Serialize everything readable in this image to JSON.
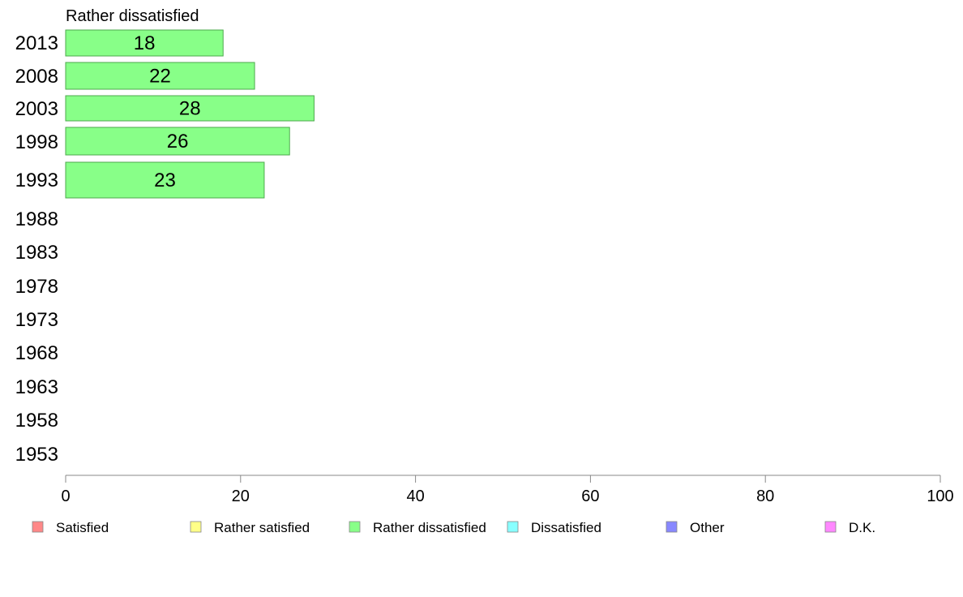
{
  "chart_data": {
    "type": "bar",
    "orientation": "horizontal",
    "title": "Rather dissatisfied",
    "categories": [
      "2013",
      "2008",
      "2003",
      "1998",
      "1993",
      "1988",
      "1983",
      "1978",
      "1973",
      "1968",
      "1963",
      "1958",
      "1953"
    ],
    "series": [
      {
        "name": "Rather dissatisfied",
        "values": [
          18,
          21.6,
          28.4,
          25.6,
          22.7,
          null,
          null,
          null,
          null,
          null,
          null,
          null,
          null
        ],
        "labels": [
          "18",
          "22",
          "28",
          "26",
          "23",
          "",
          "",
          "",
          "",
          "",
          "",
          "",
          ""
        ]
      }
    ],
    "xlim": [
      0,
      100
    ],
    "xticks": [
      0,
      20,
      40,
      60,
      80,
      100
    ],
    "bar_color": "#88ff88",
    "bar_edge_color": "#4daa4d",
    "legend": {
      "placement": "bottom",
      "items": [
        {
          "label": "Satisfied",
          "color": "#ff8888"
        },
        {
          "label": "Rather satisfied",
          "color": "#ffff88"
        },
        {
          "label": "Rather dissatisfied",
          "color": "#88ff88"
        },
        {
          "label": "Dissatisfied",
          "color": "#88ffff"
        },
        {
          "label": "Other",
          "color": "#8888ff"
        },
        {
          "label": "D.K.",
          "color": "#ff88ff"
        }
      ]
    }
  }
}
